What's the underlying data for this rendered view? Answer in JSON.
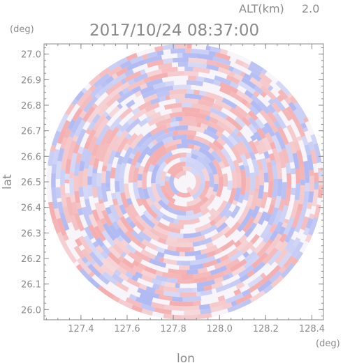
{
  "header": {
    "alt_label": "ALT(km)",
    "alt_value": "2.0",
    "timestamp": "2017/10/24 08:37:00"
  },
  "chart_data": {
    "type": "heatmap",
    "title": "2017/10/24 08:37:00",
    "xlabel": "lon",
    "ylabel": "lat",
    "x_unit": "(deg)",
    "y_unit": "(deg)",
    "xlim": [
      127.24,
      128.45
    ],
    "ylim": [
      25.96,
      27.04
    ],
    "x_ticks": [
      "127.4",
      "127.6",
      "127.8",
      "128.0",
      "128.2",
      "128.4"
    ],
    "y_ticks": [
      "26.0",
      "26.1",
      "26.2",
      "26.3",
      "26.4",
      "26.5",
      "26.6",
      "26.7",
      "26.8",
      "26.9",
      "27.0"
    ],
    "domain_center": {
      "lon": 127.85,
      "lat": 26.5
    },
    "domain_radius_deg_lat": 0.54,
    "colors": {
      "positive": "#f4a7a7",
      "negative": "#a9b4f2",
      "axis": "#8a8a8a"
    },
    "legend": "none",
    "grid": false
  }
}
